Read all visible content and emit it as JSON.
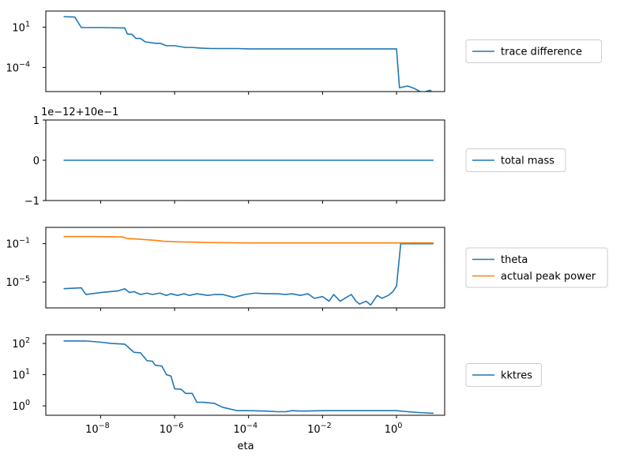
{
  "colors": {
    "series_blue": "#1f77b4",
    "series_orange": "#ff7f0e",
    "axis": "#000000",
    "legend_border": "#cccccc"
  },
  "shared_xaxis": {
    "label": "eta",
    "scale": "log",
    "ticks": [
      {
        "value": 1e-08,
        "base": "10",
        "exp": "−8"
      },
      {
        "value": 1e-06,
        "base": "10",
        "exp": "−6"
      },
      {
        "value": 0.0001,
        "base": "10",
        "exp": "−4"
      },
      {
        "value": 0.01,
        "base": "10",
        "exp": "−2"
      },
      {
        "value": 1,
        "base": "10",
        "exp": "0"
      }
    ]
  },
  "chart_data": [
    {
      "type": "line",
      "xscale": "log",
      "yscale": "log",
      "ylim": [
        1e-07,
        1000.0
      ],
      "yticks": [
        {
          "value": 10,
          "base": "10",
          "exp": "1"
        },
        {
          "value": 0.0001,
          "base": "10",
          "exp": "−4"
        }
      ],
      "offset_text": "",
      "legend": "right",
      "series": [
        {
          "name": "trace difference",
          "color": "#1f77b4",
          "x": [
            1e-09,
            2e-09,
            3e-09,
            1e-08,
            2e-08,
            4.5e-08,
            5.3e-08,
            7e-08,
            9e-08,
            1.2e-07,
            1.6e-07,
            2e-07,
            3e-07,
            4e-07,
            6e-07,
            1e-06,
            2e-06,
            3e-06,
            5e-06,
            1e-05,
            5e-05,
            0.0001,
            0.001,
            0.01,
            0.1,
            1.0,
            1.2,
            2,
            3,
            5,
            8,
            10
          ],
          "y": [
            200,
            180,
            9,
            9,
            8.5,
            8,
            1.4,
            1.3,
            0.4,
            0.4,
            0.15,
            0.13,
            0.1,
            0.1,
            0.05,
            0.05,
            0.03,
            0.03,
            0.025,
            0.022,
            0.022,
            0.02,
            0.02,
            0.02,
            0.02,
            0.02,
            3e-07,
            5e-07,
            2.5e-07,
            7e-08,
            1.5e-07,
            6e-08
          ]
        }
      ]
    },
    {
      "type": "line",
      "xscale": "log",
      "yscale": "linear",
      "ylim": [
        -1,
        1
      ],
      "yticks": [
        {
          "value": 1,
          "label": "1"
        },
        {
          "value": 0,
          "label": "0"
        },
        {
          "value": -1,
          "label": "−1"
        }
      ],
      "offset_text": "1e−12+10e−1",
      "legend": "right",
      "series": [
        {
          "name": "total mass",
          "color": "#1f77b4",
          "x": [
            1e-09,
            1e-08,
            1e-07,
            1e-06,
            1e-05,
            0.0001,
            0.001,
            0.01,
            0.1,
            1,
            10
          ],
          "y": [
            0,
            0,
            0,
            0,
            0,
            0,
            0,
            0,
            0,
            0,
            0
          ]
        }
      ]
    },
    {
      "type": "line",
      "xscale": "log",
      "yscale": "log",
      "ylim": [
        2e-08,
        5
      ],
      "yticks": [
        {
          "value": 0.1,
          "base": "10",
          "exp": "−1"
        },
        {
          "value": 1e-05,
          "base": "10",
          "exp": "−5"
        }
      ],
      "offset_text": "",
      "legend": "right",
      "series": [
        {
          "name": "theta",
          "color": "#1f77b4",
          "x": [
            1e-09,
            3e-09,
            4e-09,
            1e-08,
            3e-08,
            4.5e-08,
            6e-08,
            8e-08,
            1.2e-07,
            1.8e-07,
            2.5e-07,
            4e-07,
            6e-07,
            8e-07,
            1.2e-06,
            1.8e-06,
            2.5e-06,
            4e-06,
            8e-06,
            1.2e-05,
            2e-05,
            4e-05,
            8e-05,
            0.00015,
            0.0003,
            0.0006,
            0.001,
            0.0015,
            0.0025,
            0.004,
            0.006,
            0.01,
            0.015,
            0.02,
            0.03,
            0.04,
            0.06,
            0.08,
            0.1,
            0.15,
            0.2,
            0.3,
            0.4,
            0.6,
            0.8,
            1.0,
            1.3,
            2,
            5,
            10
          ],
          "y": [
            2e-06,
            2.5e-06,
            5e-07,
            8e-07,
            1.2e-06,
            2e-06,
            8e-07,
            1e-06,
            5e-07,
            7e-07,
            5e-07,
            7e-07,
            4e-07,
            6e-07,
            4e-07,
            6e-07,
            4e-07,
            6e-07,
            4e-07,
            5e-07,
            5e-07,
            2.5e-07,
            5e-07,
            7e-07,
            6e-07,
            6e-07,
            5e-07,
            6e-07,
            4e-07,
            6e-07,
            2e-07,
            3e-07,
            1e-07,
            5e-07,
            1e-07,
            2e-07,
            5e-07,
            1e-07,
            5e-08,
            1e-07,
            4e-08,
            4e-07,
            2e-07,
            4e-07,
            1e-06,
            4e-06,
            0.1,
            0.1,
            0.1,
            0.1
          ]
        },
        {
          "name": "actual peak power",
          "color": "#ff7f0e",
          "x": [
            1e-09,
            1e-08,
            4e-08,
            5e-08,
            1e-07,
            3e-07,
            5e-07,
            1e-06,
            1e-05,
            0.0001,
            0.001,
            0.01,
            0.1,
            1,
            10
          ],
          "y": [
            0.55,
            0.55,
            0.5,
            0.35,
            0.3,
            0.22,
            0.18,
            0.16,
            0.13,
            0.12,
            0.12,
            0.12,
            0.12,
            0.12,
            0.12
          ]
        }
      ]
    },
    {
      "type": "line",
      "xscale": "log",
      "yscale": "log",
      "ylim": [
        0.5,
        190
      ],
      "yticks": [
        {
          "value": 100,
          "base": "10",
          "exp": "2"
        },
        {
          "value": 10,
          "base": "10",
          "exp": "1"
        },
        {
          "value": 1,
          "base": "10",
          "exp": "0"
        }
      ],
      "offset_text": "",
      "legend": "right",
      "series": [
        {
          "name": "kktres",
          "color": "#1f77b4",
          "x": [
            1e-09,
            2e-09,
            4e-09,
            1e-08,
            2e-08,
            4.5e-08,
            6e-08,
            8e-08,
            1.2e-07,
            1.8e-07,
            2.5e-07,
            3e-07,
            4.5e-07,
            6e-07,
            8e-07,
            1e-06,
            1.5e-06,
            2e-06,
            3e-06,
            4e-06,
            6e-06,
            1.2e-05,
            2e-05,
            5e-05,
            0.0001,
            0.0003,
            0.0006,
            0.001,
            0.0015,
            0.003,
            0.01,
            0.03,
            0.1,
            0.3,
            1,
            2,
            5,
            10
          ],
          "y": [
            120,
            120,
            120,
            110,
            100,
            95,
            70,
            52,
            50,
            28,
            27,
            20,
            19,
            10,
            9,
            3.5,
            3.4,
            2.5,
            2.5,
            1.3,
            1.3,
            1.2,
            0.9,
            0.7,
            0.7,
            0.68,
            0.65,
            0.65,
            0.7,
            0.68,
            0.7,
            0.7,
            0.7,
            0.7,
            0.7,
            0.65,
            0.6,
            0.58
          ]
        }
      ]
    }
  ]
}
